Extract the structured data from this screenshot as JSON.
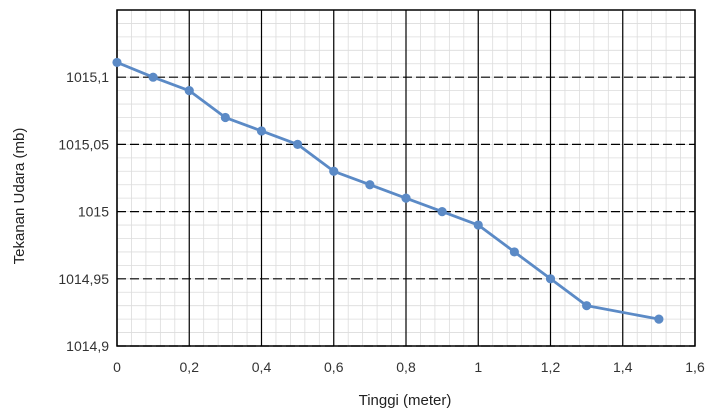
{
  "chart_data": {
    "type": "line",
    "title": "",
    "xlabel": "Tinggi (meter)",
    "ylabel": "Tekanan Udara (mb)",
    "xlim": [
      0,
      1.6
    ],
    "ylim": [
      1014.9,
      1015.15
    ],
    "x_ticks": [
      0,
      0.2,
      0.4,
      0.6,
      0.8,
      1,
      1.2,
      1.4,
      1.6
    ],
    "x_tick_labels": [
      "0",
      "0,2",
      "0,4",
      "0,6",
      "0,8",
      "1",
      "1,2",
      "1,4",
      "1,6"
    ],
    "y_ticks": [
      1014.9,
      1014.95,
      1015,
      1015.05,
      1015.1
    ],
    "y_tick_labels": [
      "1014,9",
      "1014,95",
      "1015",
      "1015,05",
      "1015,1"
    ],
    "grid": true,
    "legend": "none",
    "series": [
      {
        "color": "#5b8ac6",
        "points": [
          {
            "x": 0,
            "y": 1015.111
          },
          {
            "x": 0.1,
            "y": 1015.1
          },
          {
            "x": 0.2,
            "y": 1015.09
          },
          {
            "x": 0.3,
            "y": 1015.07
          },
          {
            "x": 0.4,
            "y": 1015.06
          },
          {
            "x": 0.5,
            "y": 1015.05
          },
          {
            "x": 0.6,
            "y": 1015.03
          },
          {
            "x": 0.7,
            "y": 1015.02
          },
          {
            "x": 0.8,
            "y": 1015.01
          },
          {
            "x": 0.9,
            "y": 1015
          },
          {
            "x": 1,
            "y": 1014.99
          },
          {
            "x": 1.1,
            "y": 1014.97
          },
          {
            "x": 1.2,
            "y": 1014.95
          },
          {
            "x": 1.3,
            "y": 1014.93
          },
          {
            "x": 1.5,
            "y": 1014.92
          }
        ]
      }
    ]
  }
}
